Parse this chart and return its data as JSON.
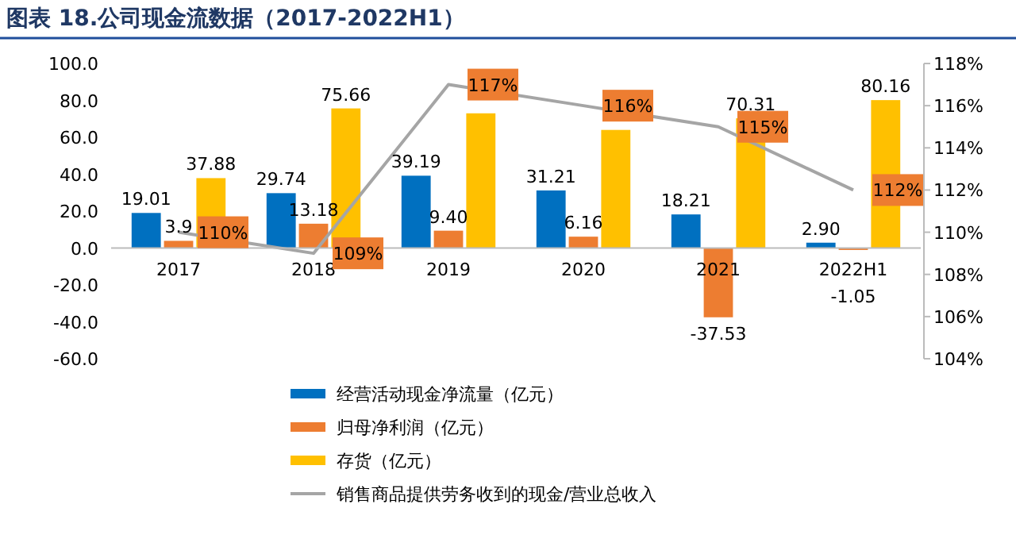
{
  "chart_data": {
    "type": "bar",
    "title": "图表 18.公司现金流数据（2017-2022H1）",
    "categories": [
      "2017",
      "2018",
      "2019",
      "2020",
      "2021",
      "2022H1"
    ],
    "series": [
      {
        "name": "经营活动现金净流量（亿元）",
        "color": "#0070c0",
        "values": [
          19.01,
          29.74,
          39.19,
          31.21,
          18.21,
          2.9
        ],
        "value_labels": [
          "19.01",
          "29.74",
          "39.19",
          "31.21",
          "18.21",
          "2.90"
        ]
      },
      {
        "name": "归母净利润（亿元）",
        "color": "#ed7d31",
        "values": [
          3.9,
          13.18,
          9.4,
          6.16,
          -37.53,
          -1.05
        ],
        "value_labels": [
          "3.9",
          "13.18",
          "9.40",
          "6.16",
          "-37.53",
          "-1.05"
        ]
      },
      {
        "name": "存货（亿元）",
        "color": "#ffc000",
        "values": [
          37.88,
          75.66,
          73,
          64,
          70.31,
          80.16
        ],
        "value_labels": [
          "37.88",
          "75.66",
          null,
          null,
          "70.31",
          "80.16"
        ]
      },
      {
        "name": "销售商品提供劳务收到的现金/营业总收入",
        "type": "line",
        "axis": "y2",
        "marker": "none",
        "color": "#a5a5a5",
        "values": [
          110,
          109,
          117,
          116,
          115,
          112
        ],
        "value_labels": [
          "110%",
          "109%",
          "117%",
          "116%",
          "115%",
          "112%"
        ]
      }
    ],
    "ylim": [
      -60,
      100
    ],
    "yticks": [
      {
        "value": -60,
        "label": "-60.0"
      },
      {
        "value": -40,
        "label": "-40.0"
      },
      {
        "value": -20,
        "label": "-20.0"
      },
      {
        "value": 0,
        "label": "0.0"
      },
      {
        "value": 20,
        "label": "20.0"
      },
      {
        "value": 40,
        "label": "40.0"
      },
      {
        "value": 60,
        "label": "60.0"
      },
      {
        "value": 80,
        "label": "80.0"
      },
      {
        "value": 100,
        "label": "100.0"
      }
    ],
    "y2lim": [
      104,
      118
    ],
    "y2ticks": [
      {
        "value": 104,
        "label": "104%"
      },
      {
        "value": 106,
        "label": "106%"
      },
      {
        "value": 108,
        "label": "108%"
      },
      {
        "value": 110,
        "label": "110%"
      },
      {
        "value": 112,
        "label": "112%"
      },
      {
        "value": 114,
        "label": "114%"
      },
      {
        "value": 116,
        "label": "116%"
      },
      {
        "value": 118,
        "label": "118%"
      }
    ],
    "grid": false,
    "legend": "bottom"
  }
}
